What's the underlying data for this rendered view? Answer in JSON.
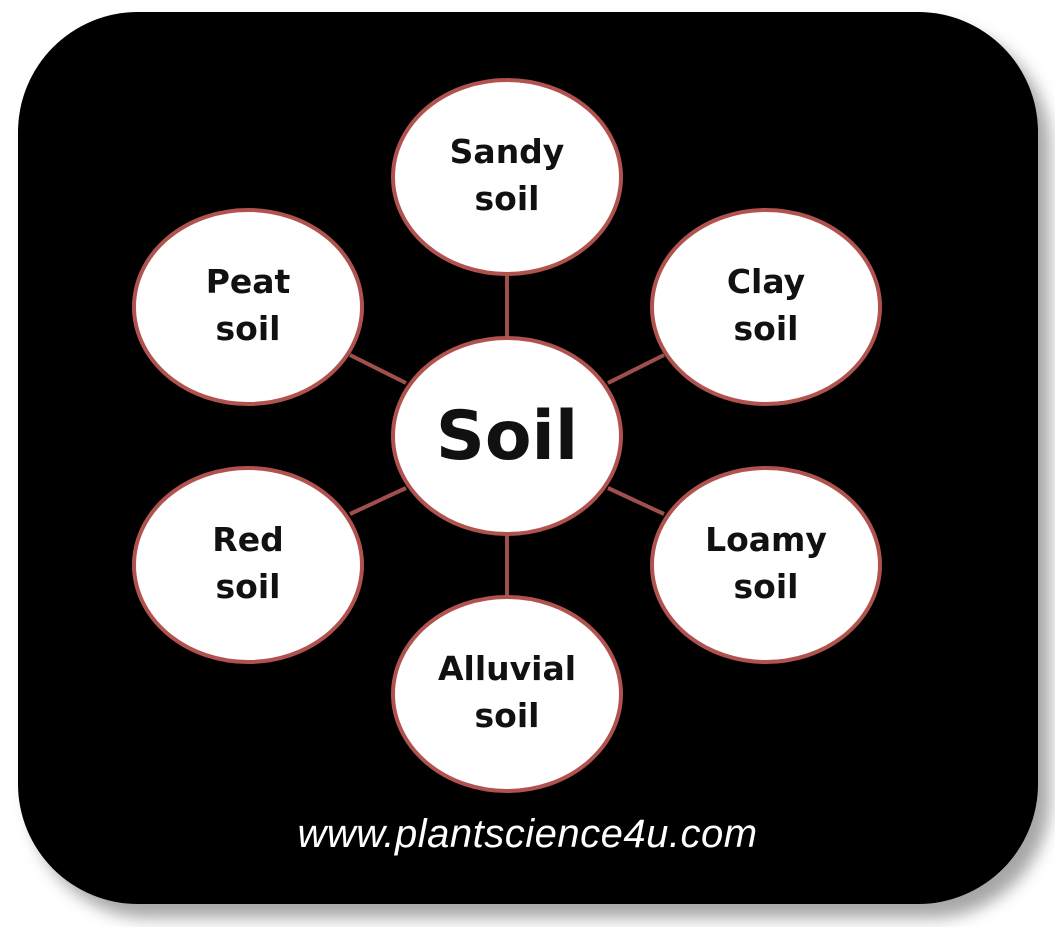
{
  "diagram": {
    "center": {
      "label": "Soil"
    },
    "nodes": [
      {
        "id": "sandy",
        "line1": "Sandy",
        "line2": "soil"
      },
      {
        "id": "clay",
        "line1": "Clay",
        "line2": "soil"
      },
      {
        "id": "loamy",
        "line1": "Loamy",
        "line2": "soil"
      },
      {
        "id": "alluvial",
        "line1": "Alluvial",
        "line2": "soil"
      },
      {
        "id": "red",
        "line1": "Red",
        "line2": "soil"
      },
      {
        "id": "peat",
        "line1": "Peat",
        "line2": "soil"
      }
    ]
  },
  "footer": {
    "website": "www.plantscience4u.com"
  },
  "colors": {
    "background": "#000000",
    "node_fill": "#ffffff",
    "node_border": "#b0524e",
    "connector": "#a0504c",
    "text": "#111111"
  }
}
